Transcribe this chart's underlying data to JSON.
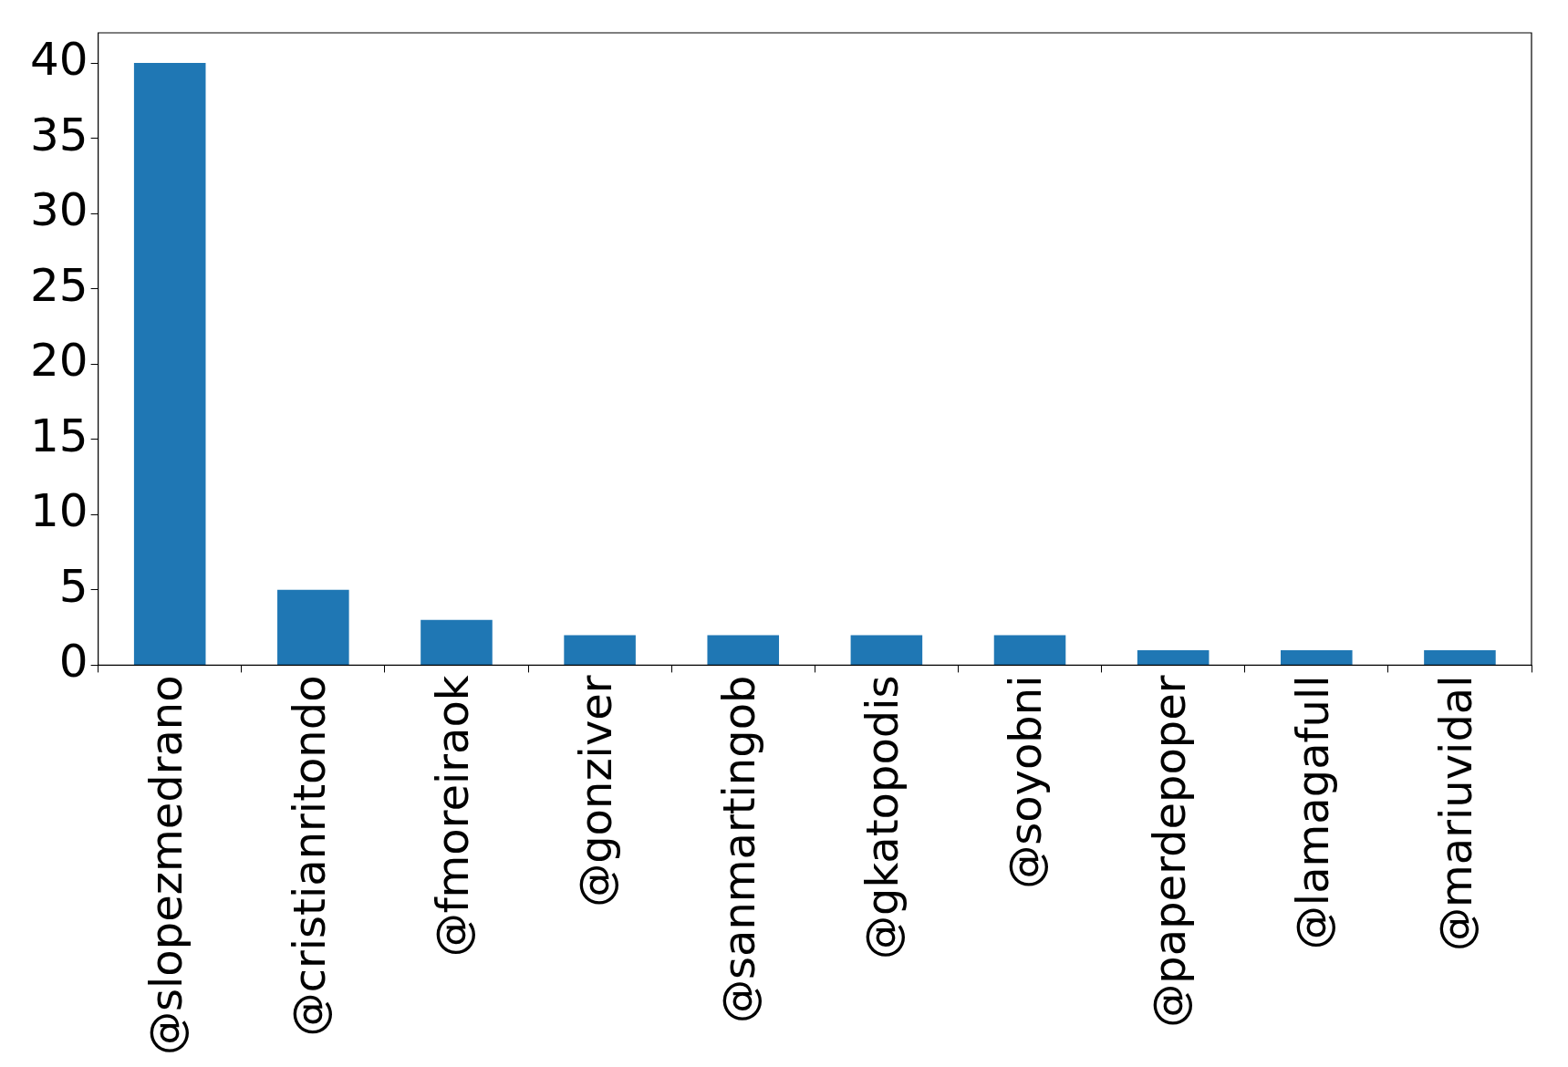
{
  "chart_data": {
    "type": "bar",
    "categories": [
      "@slopezmedrano",
      "@cristianritondo",
      "@fmoreiraok",
      "@gonziver",
      "@sanmartingob",
      "@gkatopodis",
      "@soyobni",
      "@paperdepoper",
      "@lamagafull",
      "@mariuvidal"
    ],
    "values": [
      40,
      5,
      3,
      2,
      2,
      2,
      2,
      1,
      1,
      1
    ],
    "color": "#1f77b4",
    "ylim": [
      0,
      42
    ],
    "yticks": [
      0,
      5,
      10,
      15,
      20,
      25,
      30,
      35,
      40
    ],
    "grid": false,
    "legend": false
  }
}
